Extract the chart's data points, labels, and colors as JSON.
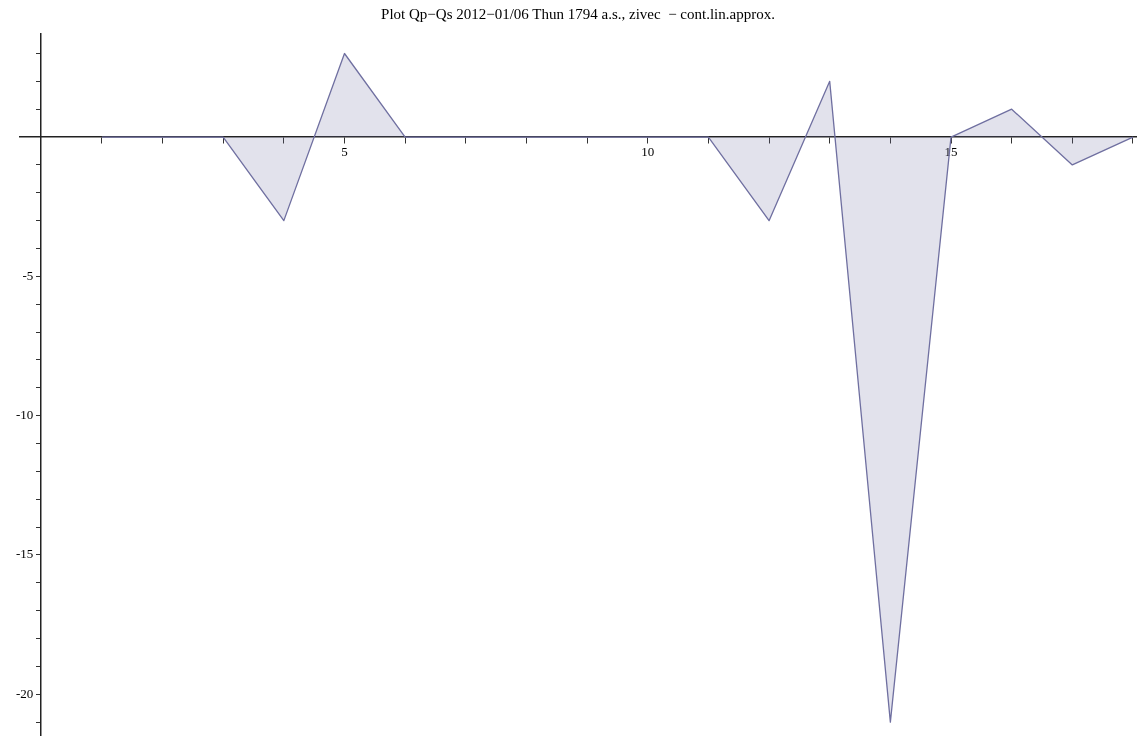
{
  "chart_data": {
    "type": "area",
    "title": "Plot Qp−Qs 2012−01/06 Thun 1794 a.s., zivec  − cont.lin.approx.",
    "x": [
      1,
      2,
      3,
      4,
      5,
      6,
      7,
      8,
      9,
      10,
      11,
      12,
      13,
      14,
      15,
      16,
      17,
      18
    ],
    "series": [
      {
        "color": "#6f6fa0",
        "values": [
          0,
          0,
          0,
          -3,
          3,
          0,
          0,
          0,
          0,
          0,
          0,
          -3,
          2,
          -21,
          0,
          1,
          -1,
          0
        ]
      }
    ],
    "xlim": [
      -0.35,
      18.05
    ],
    "xticks": [
      {
        "value": 1,
        "label": null
      },
      {
        "value": 2,
        "label": null
      },
      {
        "value": 3,
        "label": null
      },
      {
        "value": 4,
        "label": null
      },
      5,
      {
        "value": 6,
        "label": null
      },
      {
        "value": 7,
        "label": null
      },
      {
        "value": 8,
        "label": null
      },
      {
        "value": 9,
        "label": null
      },
      10,
      {
        "value": 11,
        "label": null
      },
      {
        "value": 12,
        "label": null
      },
      {
        "value": 13,
        "label": null
      },
      {
        "value": 14,
        "label": null
      },
      15,
      {
        "value": 16,
        "label": null
      },
      {
        "value": 17,
        "label": null
      },
      {
        "value": 18,
        "label": null
      }
    ],
    "ylim": [
      -21.5,
      3.7
    ],
    "yticks": [
      {
        "value": -21,
        "label": null
      },
      -20,
      {
        "value": -19,
        "label": null
      },
      {
        "value": -18,
        "label": null
      },
      {
        "value": -17,
        "label": null
      },
      {
        "value": -16,
        "label": null
      },
      -15,
      {
        "value": -14,
        "label": null
      },
      {
        "value": -13,
        "label": null
      },
      {
        "value": -12,
        "label": null
      },
      {
        "value": -11,
        "label": null
      },
      -10,
      {
        "value": -9,
        "label": null
      },
      {
        "value": -8,
        "label": null
      },
      {
        "value": -7,
        "label": null
      },
      {
        "value": -6,
        "label": null
      },
      -5,
      {
        "value": -4,
        "label": null
      },
      {
        "value": -3,
        "label": null
      },
      {
        "value": -2,
        "label": null
      },
      {
        "value": -1,
        "label": null
      },
      {
        "value": 1,
        "label": null
      },
      {
        "value": 2,
        "label": null
      },
      {
        "value": 3,
        "label": null
      }
    ],
    "grid": false,
    "legend": false
  }
}
